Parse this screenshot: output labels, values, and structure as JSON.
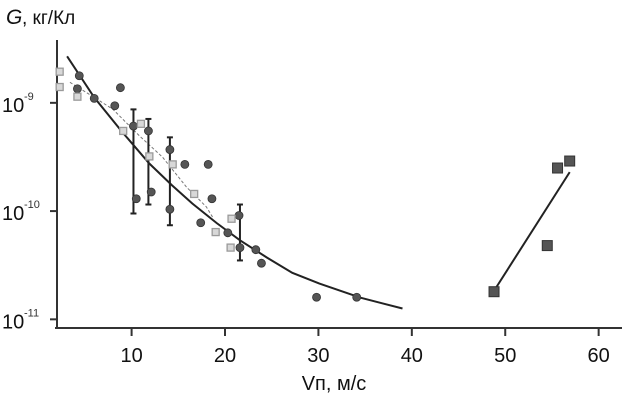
{
  "chart_data": {
    "type": "scatter",
    "title": "",
    "ylabel_symbol": "G",
    "ylabel_unit": ", кг/Кл",
    "xlabel": "Vп, м/с",
    "yscale": "log",
    "xlim": [
      1.8,
      62.5
    ],
    "ylim_log10": [
      -11.08,
      -8.05
    ],
    "grid": false,
    "xticks": [
      10,
      20,
      30,
      40,
      50,
      60
    ],
    "yticks": [
      {
        "base": "10",
        "exp": "-9",
        "log": -9
      },
      {
        "base": "10",
        "exp": "-10",
        "log": -10
      },
      {
        "base": "10",
        "exp": "-11",
        "log": -11
      }
    ],
    "series": [
      {
        "name": "circles",
        "marker": "circle",
        "color": "#555555",
        "points": [
          [
            4.4,
            1.78e-09
          ],
          [
            4.2,
            1.35e-09
          ],
          [
            6.0,
            1.1e-09
          ],
          [
            8.8,
            1.38e-09
          ],
          [
            8.2,
            9.4e-10
          ],
          [
            10.2,
            6.1e-10
          ],
          [
            11.8,
            5.5e-10
          ],
          [
            10.5,
            1.3e-10
          ],
          [
            12.1,
            1.5e-10
          ],
          [
            14.1,
            3.7e-10
          ],
          [
            14.1,
            1.04e-10
          ],
          [
            15.7,
            2.7e-10
          ],
          [
            18.2,
            2.7e-10
          ],
          [
            18.6,
            1.3e-10
          ],
          [
            17.4,
            7.8e-11
          ],
          [
            20.3,
            6.3e-11
          ],
          [
            21.5,
            9.1e-11
          ],
          [
            21.6,
            4.6e-11
          ],
          [
            23.3,
            4.4e-11
          ],
          [
            23.9,
            3.3e-11
          ],
          [
            29.8,
            1.6e-11
          ],
          [
            34.1,
            1.6e-11
          ]
        ]
      },
      {
        "name": "open-squares",
        "marker": "square-light",
        "color": "#9a9a9a",
        "points": [
          [
            2.3,
            1.94e-09
          ],
          [
            2.3,
            1.4e-09
          ],
          [
            4.2,
            1.14e-09
          ],
          [
            9.1,
            5.5e-10
          ],
          [
            11.0,
            6.4e-10
          ],
          [
            11.9,
            3.2e-10
          ],
          [
            14.4,
            2.7e-10
          ],
          [
            16.7,
            1.44e-10
          ],
          [
            19.0,
            6.4e-11
          ],
          [
            20.7,
            8.5e-11
          ],
          [
            20.6,
            4.6e-11
          ]
        ]
      },
      {
        "name": "dark-squares",
        "marker": "square-dark",
        "color": "#555555",
        "points": [
          [
            56.9,
            2.9e-10
          ],
          [
            55.6,
            2.5e-10
          ],
          [
            54.5,
            4.8e-11
          ],
          [
            48.8,
            1.8e-11
          ]
        ]
      }
    ],
    "error_bars": [
      {
        "x": 10.2,
        "low": 9.5e-11,
        "high": 8.7e-10
      },
      {
        "x": 11.8,
        "low": 1.15e-10,
        "high": 7.1e-10
      },
      {
        "x": 14.1,
        "low": 7.4e-11,
        "high": 4.8e-10
      },
      {
        "x": 21.6,
        "low": 3.5e-11,
        "high": 1.15e-10
      }
    ],
    "curves": [
      {
        "name": "fit-solid",
        "style": "solid",
        "points": [
          [
            3.1,
            -8.57
          ],
          [
            6.0,
            -8.95
          ],
          [
            9.0,
            -9.27
          ],
          [
            11.9,
            -9.56
          ],
          [
            14.3,
            -9.76
          ],
          [
            16.5,
            -9.93
          ],
          [
            19.1,
            -10.11
          ],
          [
            21.6,
            -10.27
          ],
          [
            24.5,
            -10.43
          ],
          [
            27.2,
            -10.57
          ],
          [
            30.1,
            -10.67
          ],
          [
            34.5,
            -10.8
          ],
          [
            39.0,
            -10.9
          ]
        ]
      },
      {
        "name": "fit-dashed",
        "style": "dashed",
        "points": [
          [
            3.4,
            -8.81
          ],
          [
            6.0,
            -8.95
          ],
          [
            8.0,
            -9.06
          ],
          [
            10.9,
            -9.31
          ],
          [
            13.3,
            -9.5
          ],
          [
            15.9,
            -9.78
          ],
          [
            18.0,
            -9.96
          ],
          [
            18.7,
            -10.06
          ]
        ]
      },
      {
        "name": "fit-right",
        "style": "solid",
        "points": [
          [
            49.0,
            -10.71
          ],
          [
            56.9,
            -9.64
          ]
        ]
      }
    ]
  }
}
